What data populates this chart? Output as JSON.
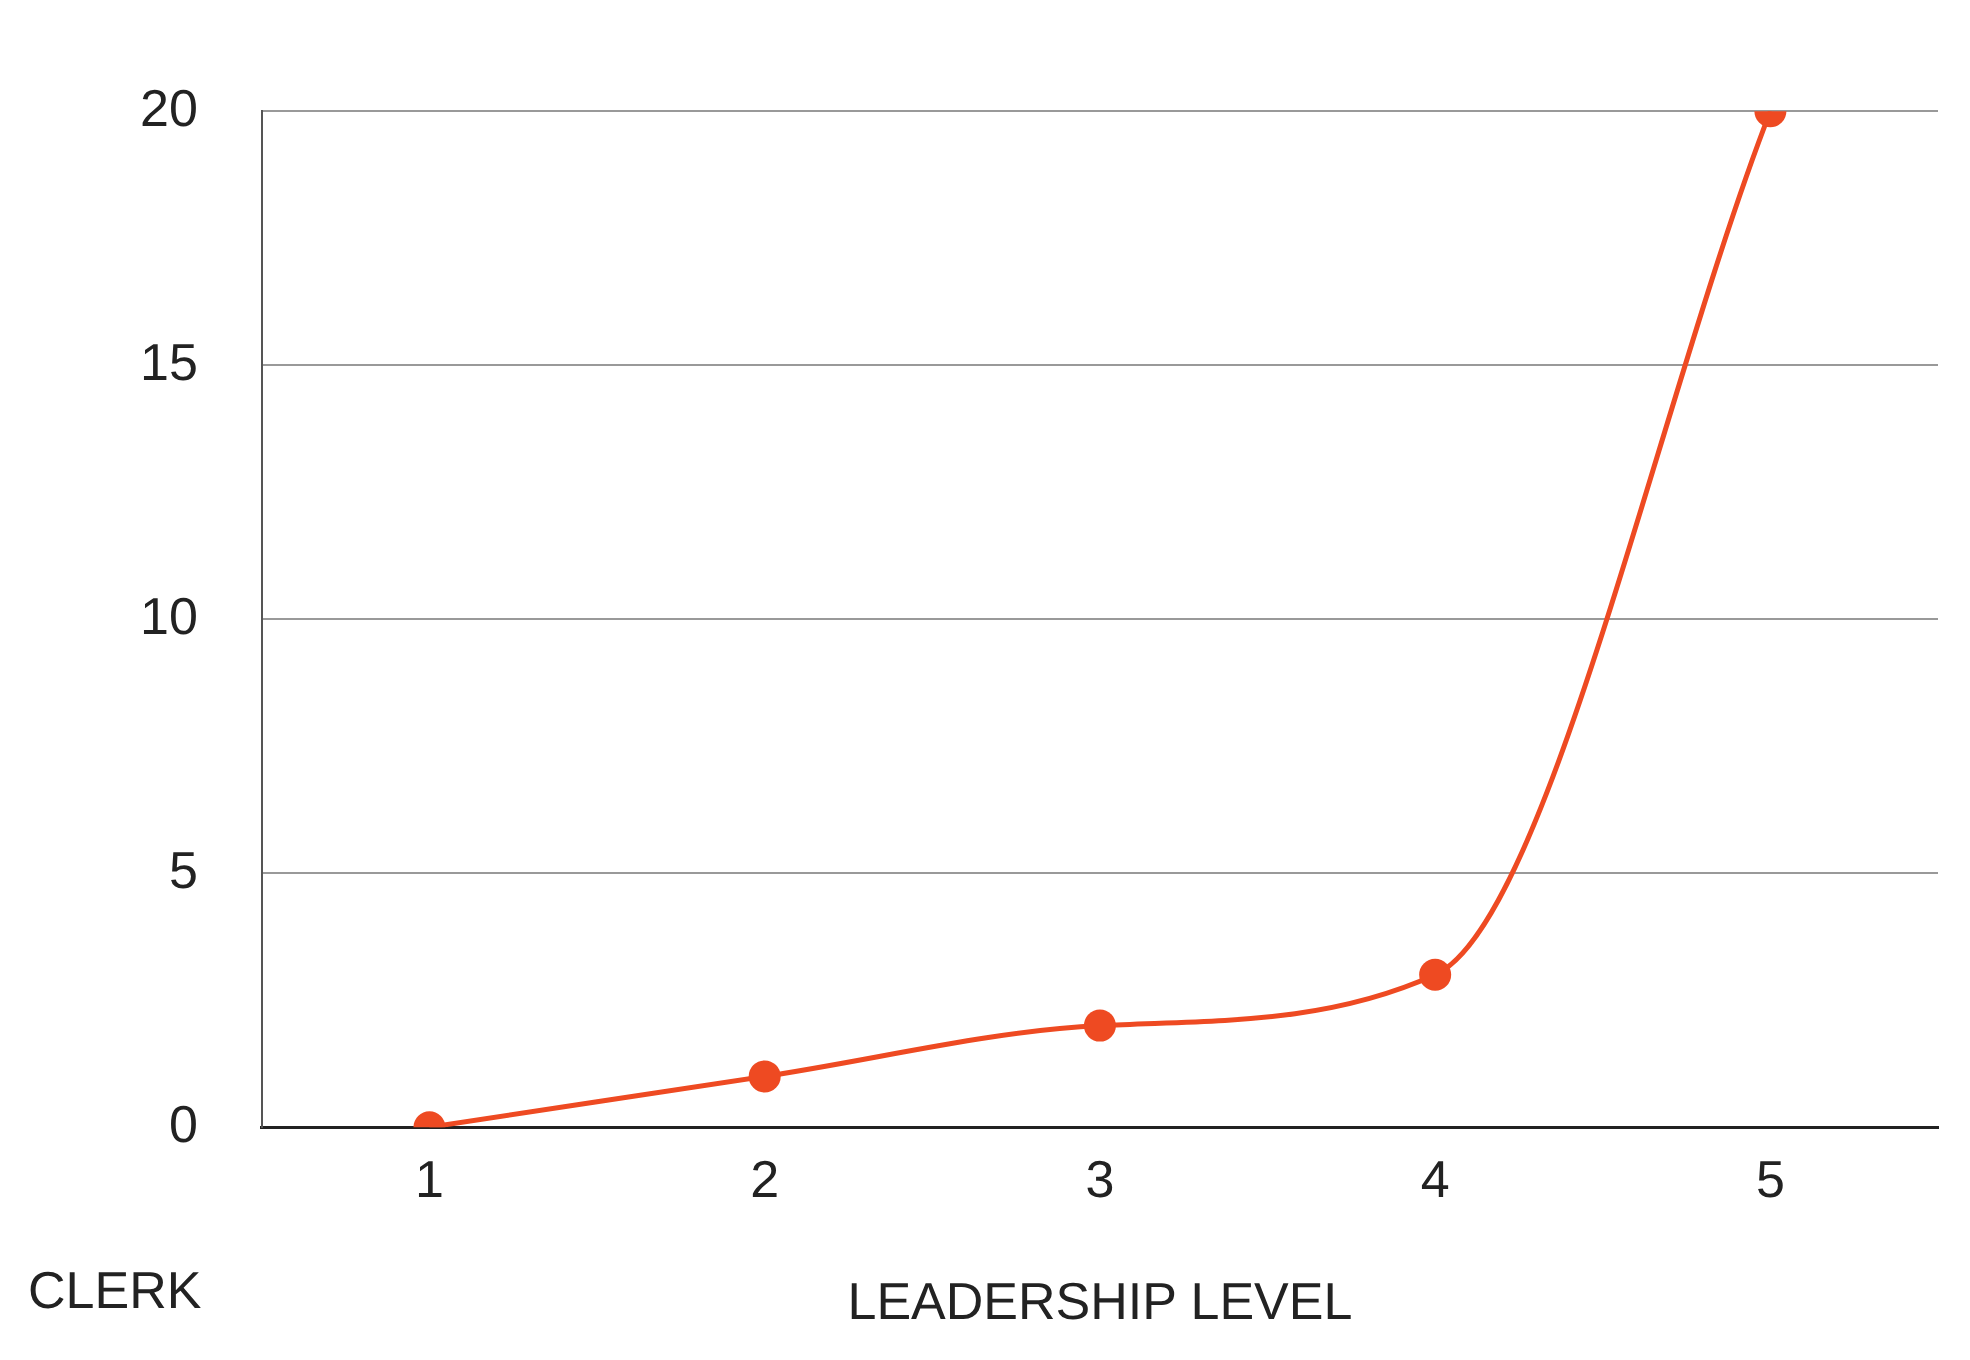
{
  "chart_data": {
    "type": "line",
    "xlabel": "LEADERSHIP LEVEL",
    "annotations": [
      "CLERK"
    ],
    "categories": [
      "1",
      "2",
      "3",
      "4",
      "5"
    ],
    "series": [
      {
        "color": "#ee4a22",
        "values": [
          0,
          1,
          2,
          3,
          20
        ]
      }
    ],
    "ylim": [
      0,
      20
    ],
    "yticks": [
      0,
      5,
      10,
      15,
      20
    ],
    "grid": "y",
    "legend": false,
    "marker": "circle",
    "line_style": "solid"
  }
}
